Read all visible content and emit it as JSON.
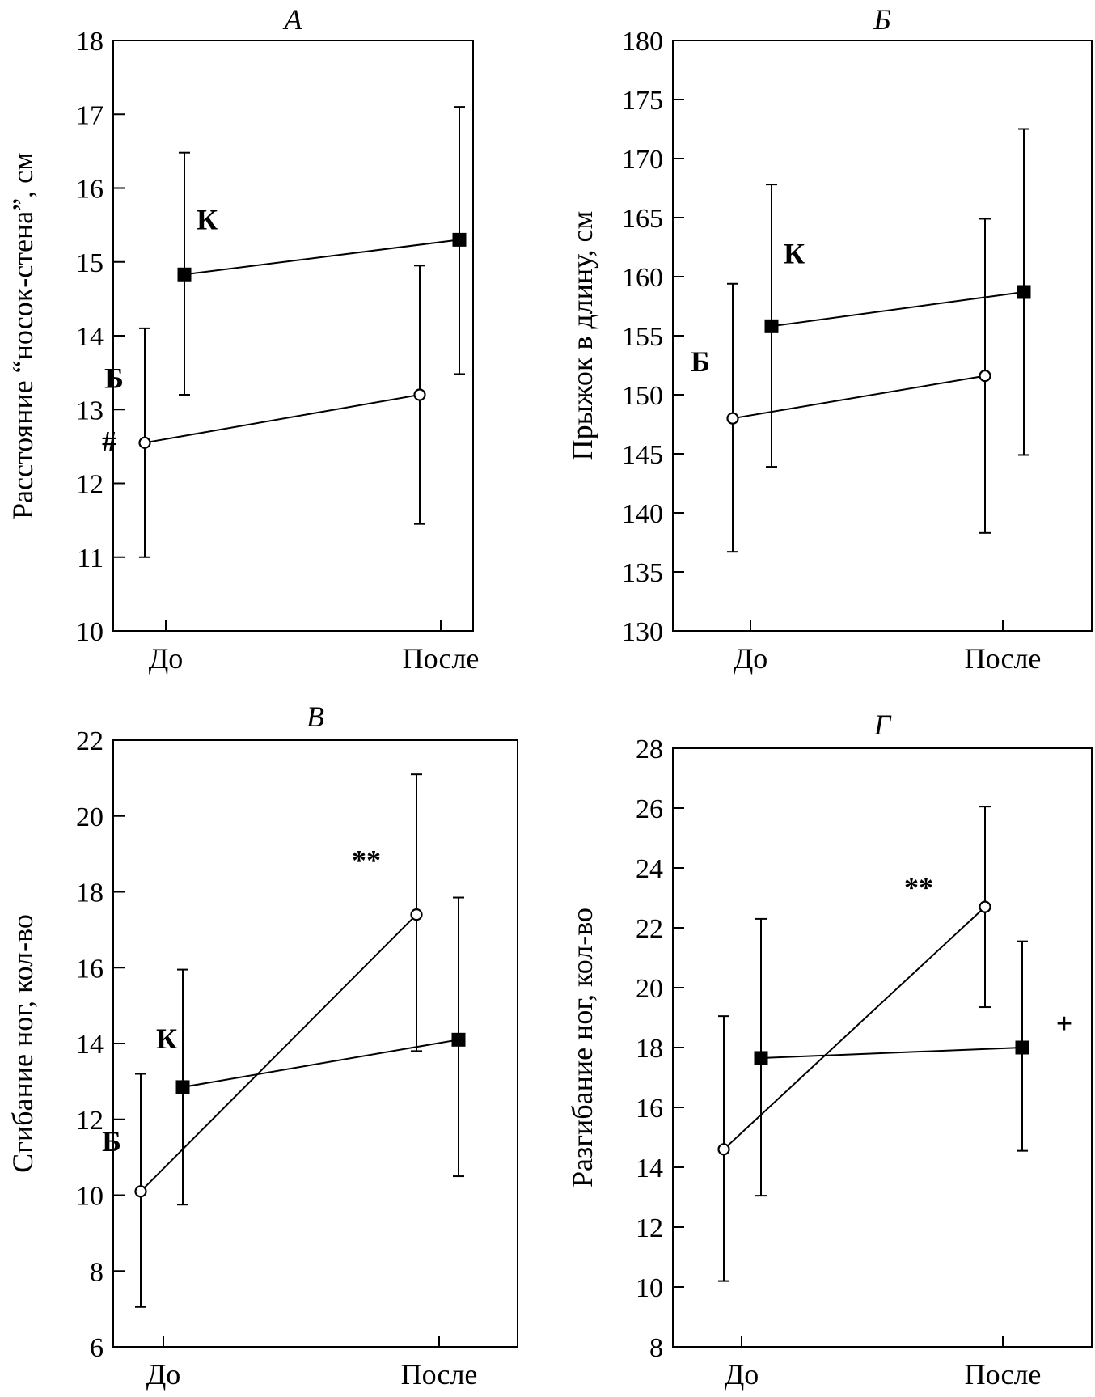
{
  "chart_data": [
    {
      "type": "line",
      "title": "А",
      "xlabel": "",
      "ylabel": "Расстояние “носок-стена”, см",
      "categories": [
        "До",
        "После"
      ],
      "ylim": [
        10,
        18
      ],
      "yticks": [
        10,
        11,
        12,
        13,
        14,
        15,
        16,
        17,
        18
      ],
      "series": [
        {
          "name": "Б",
          "marker": "circle",
          "values": [
            12.55,
            13.2
          ],
          "err_low": [
            11.0,
            11.45
          ],
          "err_high": [
            14.1,
            14.95
          ]
        },
        {
          "name": "К",
          "marker": "square",
          "values": [
            14.83,
            15.3
          ],
          "err_low": [
            13.2,
            13.48
          ],
          "err_high": [
            16.48,
            17.1
          ]
        }
      ],
      "annotations": [
        {
          "text": "К",
          "near": "К-До"
        },
        {
          "text": "Б",
          "near": "Б-До"
        },
        {
          "text": "#",
          "near": "Б-До"
        }
      ]
    },
    {
      "type": "line",
      "title": "Б",
      "xlabel": "",
      "ylabel": "Прыжок в длину, см",
      "categories": [
        "До",
        "После"
      ],
      "ylim": [
        130,
        180
      ],
      "yticks": [
        130,
        135,
        140,
        145,
        150,
        155,
        160,
        165,
        170,
        175,
        180
      ],
      "series": [
        {
          "name": "Б",
          "marker": "circle",
          "values": [
            148.0,
            151.6
          ],
          "err_low": [
            136.7,
            138.3
          ],
          "err_high": [
            159.4,
            164.9
          ]
        },
        {
          "name": "К",
          "marker": "square",
          "values": [
            155.8,
            158.7
          ],
          "err_low": [
            143.9,
            144.9
          ],
          "err_high": [
            167.8,
            172.5
          ]
        }
      ],
      "annotations": [
        {
          "text": "К",
          "near": "К-До"
        },
        {
          "text": "Б",
          "near": "Б-До"
        }
      ]
    },
    {
      "type": "line",
      "title": "В",
      "xlabel": "",
      "ylabel": "Сгибание ног, кол-во",
      "categories": [
        "До",
        "После"
      ],
      "ylim": [
        6,
        22
      ],
      "yticks": [
        6,
        8,
        10,
        12,
        14,
        16,
        18,
        20,
        22
      ],
      "series": [
        {
          "name": "Б",
          "marker": "circle",
          "values": [
            10.1,
            17.4
          ],
          "err_low": [
            7.05,
            13.8
          ],
          "err_high": [
            13.2,
            21.1
          ]
        },
        {
          "name": "К",
          "marker": "square",
          "values": [
            12.85,
            14.1
          ],
          "err_low": [
            9.75,
            10.5
          ],
          "err_high": [
            15.95,
            17.85
          ]
        }
      ],
      "annotations": [
        {
          "text": "К",
          "near": "К-До"
        },
        {
          "text": "Б",
          "near": "Б-До"
        },
        {
          "text": "**",
          "near": "Б-После"
        }
      ]
    },
    {
      "type": "line",
      "title": "Г",
      "xlabel": "",
      "ylabel": "Разгибание ног, кол-во",
      "categories": [
        "До",
        "После"
      ],
      "ylim": [
        8,
        28
      ],
      "yticks": [
        8,
        10,
        12,
        14,
        16,
        18,
        20,
        22,
        24,
        26,
        28
      ],
      "series": [
        {
          "name": "Б",
          "marker": "circle",
          "values": [
            14.6,
            22.7
          ],
          "err_low": [
            10.2,
            19.35
          ],
          "err_high": [
            19.05,
            26.05
          ]
        },
        {
          "name": "К",
          "marker": "square",
          "values": [
            17.65,
            18.0
          ],
          "err_low": [
            13.05,
            14.55
          ],
          "err_high": [
            22.3,
            21.55
          ]
        }
      ],
      "annotations": [
        {
          "text": "**",
          "near": "Б-После"
        },
        {
          "text": "+",
          "near": "К-После"
        }
      ]
    }
  ]
}
